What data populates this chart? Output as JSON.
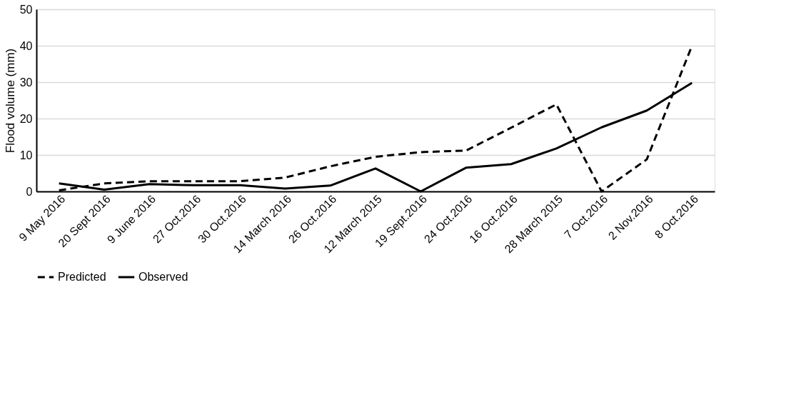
{
  "chart_data": {
    "type": "line",
    "ylabel": "Flood volume (mm)",
    "categories": [
      "9 May 2016",
      "20 Sept 2016",
      "9 June 2016",
      "27 Oct.2016",
      "30 Oct.2016",
      "14 March 2016",
      "26 Oct.2016",
      "12 March 2015",
      "19 Sept.2016",
      "24 Oct.2016",
      "16 Oct.2016",
      "28 March 2015",
      "7 Oct.2016",
      "2 Nov.2016",
      "8 Oct.2016"
    ],
    "series": [
      {
        "name": "Predicted",
        "color": "#000000",
        "line_style": "dashed",
        "values": [
          0.3,
          2.2,
          2.8,
          2.8,
          2.8,
          3.8,
          6.9,
          9.5,
          10.8,
          11.2,
          17.5,
          23.9,
          0,
          8.8,
          40
        ]
      },
      {
        "name": "Observed",
        "color": "#000000",
        "line_style": "solid",
        "values": [
          2.2,
          0.5,
          2.0,
          1.7,
          1.7,
          0.8,
          1.6,
          6.3,
          0,
          6.5,
          7.5,
          11.8,
          17.6,
          22.2,
          29.8
        ]
      }
    ],
    "ylim": [
      0,
      50
    ],
    "yticks": [
      0,
      10,
      20,
      30,
      40,
      50
    ],
    "grid": "y",
    "legend": "bottom",
    "marker": "none"
  }
}
